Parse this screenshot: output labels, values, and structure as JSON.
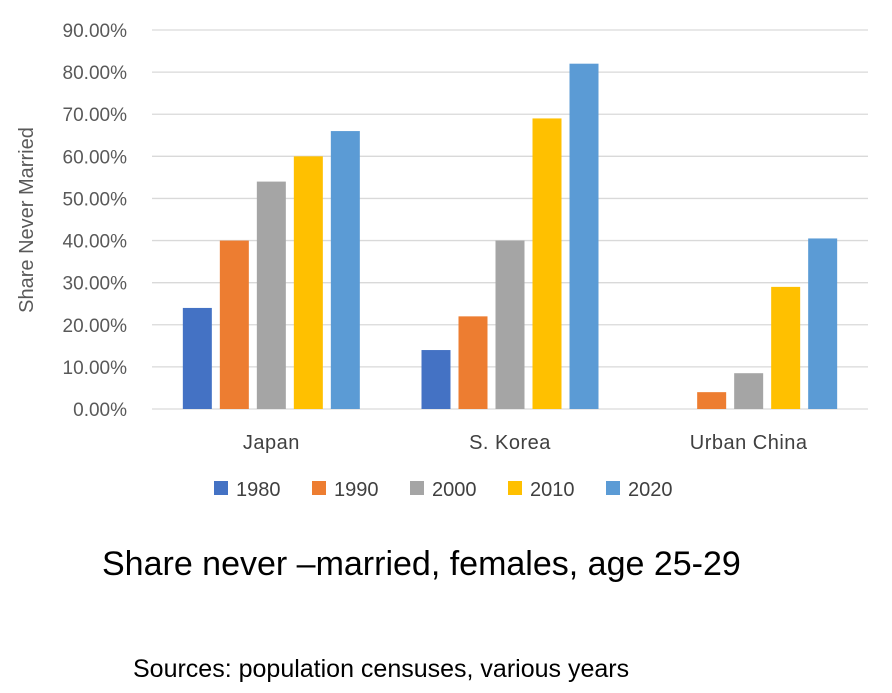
{
  "chart_data": {
    "type": "bar",
    "categories": [
      "Japan",
      "S. Korea",
      "Urban China"
    ],
    "series": [
      {
        "name": "1980",
        "color": "#4472C4",
        "values": [
          24,
          14,
          null
        ]
      },
      {
        "name": "1990",
        "color": "#ED7D31",
        "values": [
          40,
          22,
          4
        ]
      },
      {
        "name": "2000",
        "color": "#A5A5A5",
        "values": [
          54,
          40,
          8.5
        ]
      },
      {
        "name": "2010",
        "color": "#FFC000",
        "values": [
          60,
          69,
          29
        ]
      },
      {
        "name": "2020",
        "color": "#5B9BD5",
        "values": [
          66,
          82,
          40.5
        ]
      }
    ],
    "ylabel": "Share Never Married",
    "xlabel": "",
    "ylim": [
      0,
      90
    ],
    "yticks": [
      "0.00%",
      "10.00%",
      "20.00%",
      "30.00%",
      "40.00%",
      "50.00%",
      "60.00%",
      "70.00%",
      "80.00%",
      "90.00%"
    ],
    "grid": true,
    "legend": "bottom"
  },
  "caption": {
    "title": "Share never –married, females, age 25-29",
    "sources": "Sources: population censuses, various years"
  },
  "colors": {
    "grid": "#D9D9D9",
    "axis": "#D9D9D9"
  }
}
